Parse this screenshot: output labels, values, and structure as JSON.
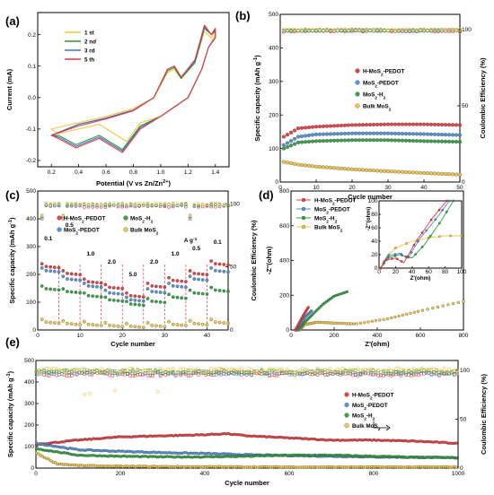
{
  "colors": {
    "red": "#e8383d",
    "blue": "#4f8fd6",
    "green": "#2e9e3e",
    "yellow": "#f2c542",
    "cv3": "#3b6fd1",
    "cv2": "#2d9a36",
    "cv5": "#e8383d"
  },
  "panels": [
    "(a)",
    "(b)",
    "(c)",
    "(d)",
    "(e)"
  ],
  "chart_data": [
    {
      "panel": "(a)",
      "type": "line",
      "xlabel": "Potential (V vs Zn/Zn2+)",
      "ylabel": "Current (mA)",
      "xlim": [
        0.1,
        1.5
      ],
      "ylim": [
        -0.22,
        0.27
      ],
      "xticks": [
        "0.2",
        "0.4",
        "0.6",
        "0.8",
        "1.0",
        "1.2",
        "1.4"
      ],
      "yticks": [
        "-0.2",
        "-0.1",
        "0.0",
        "0.1",
        "0.2"
      ],
      "legend": [
        "1 st",
        "2 nd",
        "3 rd",
        "5 th"
      ],
      "series": [
        {
          "name": "1 st",
          "upper": [
            [
              0.2,
              -0.1
            ],
            [
              0.4,
              -0.08
            ],
            [
              0.6,
              -0.06
            ],
            [
              0.8,
              -0.035
            ],
            [
              0.95,
              0.0
            ],
            [
              1.05,
              0.08
            ],
            [
              1.1,
              0.09
            ],
            [
              1.15,
              0.06
            ],
            [
              1.25,
              0.11
            ],
            [
              1.32,
              0.21
            ],
            [
              1.37,
              0.19
            ],
            [
              1.4,
              0.21
            ]
          ],
          "lower": [
            [
              1.4,
              0.2
            ],
            [
              1.35,
              0.16
            ],
            [
              1.3,
              0.09
            ],
            [
              1.2,
              0.0
            ],
            [
              1.0,
              -0.06
            ],
            [
              0.85,
              -0.08
            ],
            [
              0.75,
              -0.14
            ],
            [
              0.55,
              -0.085
            ],
            [
              0.4,
              -0.1
            ],
            [
              0.25,
              -0.115
            ],
            [
              0.2,
              -0.1
            ]
          ]
        },
        {
          "name": "2 nd",
          "upper": [
            [
              0.2,
              -0.12
            ],
            [
              0.4,
              -0.085
            ],
            [
              0.6,
              -0.065
            ],
            [
              0.8,
              -0.04
            ],
            [
              0.95,
              0.0
            ],
            [
              1.05,
              0.085
            ],
            [
              1.1,
              0.095
            ],
            [
              1.15,
              0.06
            ],
            [
              1.25,
              0.11
            ],
            [
              1.32,
              0.22
            ],
            [
              1.37,
              0.2
            ],
            [
              1.4,
              0.21
            ]
          ],
          "lower": [
            [
              1.4,
              0.19
            ],
            [
              1.35,
              0.16
            ],
            [
              1.3,
              0.09
            ],
            [
              1.2,
              0.0
            ],
            [
              1.0,
              -0.06
            ],
            [
              0.85,
              -0.09
            ],
            [
              0.72,
              -0.165
            ],
            [
              0.55,
              -0.12
            ],
            [
              0.38,
              -0.15
            ],
            [
              0.25,
              -0.12
            ],
            [
              0.2,
              -0.12
            ]
          ]
        },
        {
          "name": "3 rd",
          "upper": [
            [
              0.2,
              -0.12
            ],
            [
              0.4,
              -0.085
            ],
            [
              0.6,
              -0.065
            ],
            [
              0.8,
              -0.04
            ],
            [
              0.95,
              0.0
            ],
            [
              1.05,
              0.09
            ],
            [
              1.1,
              0.1
            ],
            [
              1.15,
              0.065
            ],
            [
              1.25,
              0.115
            ],
            [
              1.32,
              0.225
            ],
            [
              1.37,
              0.2
            ],
            [
              1.4,
              0.215
            ]
          ],
          "lower": [
            [
              1.4,
              0.19
            ],
            [
              1.35,
              0.16
            ],
            [
              1.3,
              0.09
            ],
            [
              1.2,
              0.0
            ],
            [
              1.0,
              -0.06
            ],
            [
              0.85,
              -0.095
            ],
            [
              0.72,
              -0.17
            ],
            [
              0.55,
              -0.125
            ],
            [
              0.38,
              -0.155
            ],
            [
              0.25,
              -0.125
            ],
            [
              0.2,
              -0.12
            ]
          ]
        },
        {
          "name": "5 th",
          "upper": [
            [
              0.2,
              -0.12
            ],
            [
              0.4,
              -0.09
            ],
            [
              0.6,
              -0.068
            ],
            [
              0.8,
              -0.042
            ],
            [
              0.95,
              0.0
            ],
            [
              1.05,
              0.09
            ],
            [
              1.1,
              0.1
            ],
            [
              1.15,
              0.065
            ],
            [
              1.25,
              0.12
            ],
            [
              1.32,
              0.23
            ],
            [
              1.37,
              0.2
            ],
            [
              1.4,
              0.22
            ]
          ],
          "lower": [
            [
              1.4,
              0.19
            ],
            [
              1.35,
              0.16
            ],
            [
              1.3,
              0.09
            ],
            [
              1.2,
              0.0
            ],
            [
              1.0,
              -0.06
            ],
            [
              0.85,
              -0.1
            ],
            [
              0.72,
              -0.175
            ],
            [
              0.55,
              -0.13
            ],
            [
              0.38,
              -0.16
            ],
            [
              0.25,
              -0.13
            ],
            [
              0.2,
              -0.12
            ]
          ]
        }
      ]
    },
    {
      "panel": "(b)",
      "type": "scatter",
      "xlabel": "Cycle number",
      "ylabel": "Specific capacity (mAh g-1)",
      "y2label": "Coulombic Efficiency (%)",
      "xlim": [
        0,
        50
      ],
      "ylim": [
        0,
        500
      ],
      "y2lim": [
        0,
        110
      ],
      "xticks": [
        "0",
        "10",
        "20",
        "30",
        "40",
        "50"
      ],
      "yticks": [
        "0",
        "100",
        "200",
        "300",
        "400",
        "500"
      ],
      "y2ticks": [
        "0",
        "50",
        "100"
      ],
      "legend": [
        "H-MoS2-PEDOT",
        "MoS2-PEDOT",
        "MoS2-H2O",
        "Bulk MoS2"
      ],
      "series": [
        {
          "name": "H-MoS2-PEDOT",
          "x": [
            1,
            5,
            10,
            20,
            30,
            40,
            50
          ],
          "values": [
            135,
            160,
            165,
            170,
            172,
            172,
            170
          ]
        },
        {
          "name": "MoS2-PEDOT",
          "x": [
            1,
            5,
            10,
            20,
            30,
            40,
            50
          ],
          "values": [
            110,
            135,
            142,
            145,
            145,
            143,
            140
          ]
        },
        {
          "name": "MoS2-H2O",
          "x": [
            1,
            5,
            10,
            20,
            30,
            40,
            50
          ],
          "values": [
            100,
            118,
            122,
            125,
            125,
            122,
            120
          ]
        },
        {
          "name": "Bulk MoS2",
          "x": [
            1,
            5,
            10,
            20,
            30,
            40,
            50
          ],
          "values": [
            60,
            52,
            46,
            38,
            32,
            27,
            22
          ]
        }
      ],
      "ce": {
        "x_start": 1,
        "x_end": 50,
        "values": [
          101,
          100,
          100,
          99.5,
          99.5
        ]
      }
    },
    {
      "panel": "(c)",
      "type": "scatter",
      "xlabel": "Cycle number",
      "ylabel": "Specific capacity (mAh g-1)",
      "y2label": "Coulombic Efficiency (%)",
      "xlim": [
        0,
        45
      ],
      "ylim": [
        0,
        500
      ],
      "y2lim": [
        0,
        110
      ],
      "xticks": [
        "0",
        "10",
        "20",
        "30",
        "40"
      ],
      "yticks": [
        "0",
        "100",
        "200",
        "300",
        "400",
        "500"
      ],
      "y2ticks": [
        "0",
        "50",
        "100"
      ],
      "unit_label": "A g-1",
      "rate_labels": [
        "0.1",
        "0.5",
        "1.0",
        "2.0",
        "5.0",
        "2.0",
        "1.0",
        "0.5",
        "0.1"
      ],
      "legend": [
        "H-MoS2-PEDOT",
        "MoS2-PEDOT",
        "MoS2-H2O",
        "Bulk MoS2"
      ],
      "series": [
        {
          "name": "H-MoS2-PEDOT",
          "steps": [
            230,
            205,
            175,
            155,
            125,
            160,
            180,
            205,
            240
          ]
        },
        {
          "name": "MoS2-PEDOT",
          "steps": [
            215,
            185,
            160,
            135,
            110,
            140,
            160,
            185,
            215
          ]
        },
        {
          "name": "MoS2-H2O",
          "steps": [
            150,
            140,
            125,
            110,
            95,
            105,
            120,
            135,
            145
          ]
        },
        {
          "name": "Bulk MoS2",
          "steps": [
            30,
            25,
            22,
            18,
            15,
            18,
            22,
            25,
            30
          ]
        }
      ]
    },
    {
      "panel": "(d)",
      "type": "scatter",
      "xlabel": "Z'(ohm)",
      "ylabel": "-Z''(ohm)",
      "xlim": [
        0,
        800
      ],
      "ylim": [
        0,
        800
      ],
      "xticks": [
        "0",
        "200",
        "400",
        "600",
        "800"
      ],
      "yticks": [
        "0",
        "200",
        "400",
        "600",
        "800"
      ],
      "inset": {
        "xlabel": "Z'(ohm)",
        "ylabel": "-Z''(ohm)",
        "xticks": [
          "0",
          "20",
          "40",
          "60",
          "80",
          "100"
        ],
        "yticks": [
          "0",
          "20",
          "40",
          "60",
          "80",
          "100"
        ]
      },
      "legend": [
        "H-MoS2-PEDOT",
        "MoS2-PEDOT",
        "MoS2-H2O",
        "Bulk MoS2"
      ]
    },
    {
      "panel": "(e)",
      "type": "scatter",
      "xlabel": "Cycle number",
      "ylabel": "Specific capacity (mAh g-1)",
      "y2label": "Coulombic Efficiency (%)",
      "xlim": [
        0,
        1000
      ],
      "ylim": [
        0,
        500
      ],
      "y2lim": [
        0,
        110
      ],
      "xticks": [
        "0",
        "200",
        "400",
        "600",
        "800",
        "1000"
      ],
      "yticks": [
        "0",
        "100",
        "200",
        "300",
        "400",
        "500"
      ],
      "y2ticks": [
        "0",
        "50",
        "100"
      ],
      "legend": [
        "H-MoS2-PEDOT",
        "MoS2-PEDOT",
        "MoS2-H2O",
        "Bulk MoS2"
      ],
      "series": [
        {
          "name": "H-MoS2-PEDOT",
          "x": [
            1,
            100,
            200,
            300,
            400,
            450,
            500,
            600,
            700,
            800,
            900,
            1000
          ],
          "values": [
            110,
            130,
            145,
            150,
            155,
            160,
            150,
            140,
            130,
            130,
            125,
            115
          ]
        },
        {
          "name": "MoS2-PEDOT",
          "x": [
            1,
            100,
            200,
            300,
            400,
            500,
            600,
            700,
            800,
            900,
            1000
          ],
          "values": [
            115,
            85,
            78,
            72,
            68,
            62,
            58,
            55,
            52,
            50,
            48
          ]
        },
        {
          "name": "MoS2-H2O",
          "x": [
            1,
            100,
            200,
            300,
            400,
            500,
            600,
            700,
            800,
            900,
            1000
          ],
          "values": [
            90,
            60,
            55,
            52,
            52,
            55,
            60,
            60,
            55,
            50,
            48
          ]
        },
        {
          "name": "Bulk MoS2",
          "x": [
            1,
            50,
            100,
            200,
            400,
            600,
            800,
            1000
          ],
          "values": [
            70,
            20,
            12,
            8,
            6,
            5,
            5,
            5
          ]
        }
      ]
    }
  ]
}
